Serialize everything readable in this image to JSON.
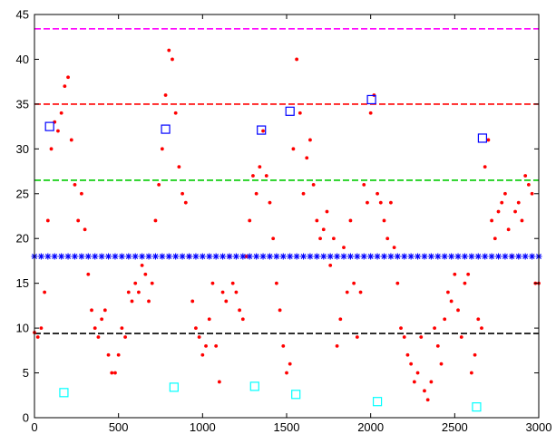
{
  "chart_data": {
    "type": "scatter",
    "title": "",
    "xlabel": "",
    "ylabel": "",
    "xlim": [
      0,
      3000
    ],
    "ylim": [
      0,
      45
    ],
    "grid": false,
    "x_ticks": [
      0,
      500,
      1000,
      1500,
      2000,
      2500,
      3000
    ],
    "y_ticks": [
      0,
      5,
      10,
      15,
      20,
      25,
      30,
      35,
      40,
      45
    ],
    "x_tick_labels": [
      "0",
      "500",
      "1000",
      "1500",
      "2000",
      "2500",
      "3000"
    ],
    "y_tick_labels": [
      "0",
      "5",
      "10",
      "15",
      "20",
      "25",
      "30",
      "35",
      "40",
      "45"
    ],
    "series": [
      {
        "color": "#ff0000",
        "marker": "dot",
        "x": [
          0,
          20,
          40,
          60,
          80,
          100,
          120,
          140,
          160,
          180,
          200,
          220,
          240,
          260,
          280,
          300,
          320,
          340,
          360,
          380,
          400,
          420,
          440,
          460,
          480,
          500,
          520,
          540,
          560,
          580,
          600,
          620,
          640,
          660,
          680,
          700,
          720,
          740,
          760,
          780,
          800,
          820,
          840,
          860,
          880,
          900,
          920,
          940,
          960,
          980,
          1000,
          1020,
          1040,
          1060,
          1080,
          1100,
          1120,
          1140,
          1160,
          1180,
          1200,
          1220,
          1240,
          1260,
          1280,
          1300,
          1320,
          1340,
          1360,
          1380,
          1400,
          1420,
          1440,
          1460,
          1480,
          1500,
          1520,
          1540,
          1560,
          1580,
          1600,
          1620,
          1640,
          1660,
          1680,
          1700,
          1720,
          1740,
          1760,
          1780,
          1800,
          1820,
          1840,
          1860,
          1880,
          1900,
          1920,
          1940,
          1960,
          1980,
          2000,
          2020,
          2040,
          2060,
          2080,
          2100,
          2120,
          2140,
          2160,
          2180,
          2200,
          2220,
          2240,
          2260,
          2280,
          2300,
          2320,
          2340,
          2360,
          2380,
          2400,
          2420,
          2440,
          2460,
          2480,
          2500,
          2520,
          2540,
          2560,
          2580,
          2600,
          2620,
          2640,
          2660,
          2680,
          2700,
          2720,
          2740,
          2760,
          2780,
          2800,
          2820,
          2840,
          2860,
          2880,
          2900,
          2920,
          2940,
          2960,
          2980,
          3000
        ],
        "y": [
          9.5,
          9,
          10,
          14,
          22,
          30,
          33,
          32,
          34,
          37,
          38,
          31,
          26,
          22,
          25,
          21,
          16,
          12,
          10,
          9,
          11,
          12,
          7,
          5,
          5,
          7,
          10,
          9,
          14,
          13,
          15,
          14,
          17,
          16,
          13,
          15,
          22,
          26,
          30,
          36,
          41,
          40,
          34,
          28,
          25,
          24,
          18,
          13,
          10,
          9,
          7,
          8,
          11,
          15,
          8,
          4,
          14,
          13,
          18,
          15,
          14,
          12,
          11,
          18,
          22,
          27,
          25,
          28,
          32,
          27,
          24,
          20,
          15,
          12,
          8,
          5,
          6,
          30,
          40,
          34,
          25,
          29,
          31,
          26,
          22,
          20,
          21,
          23,
          17,
          20,
          8,
          11,
          19,
          14,
          22,
          15,
          9,
          14,
          26,
          24,
          34,
          36,
          25,
          24,
          22,
          20,
          24,
          19,
          15,
          10,
          9,
          7,
          6,
          4,
          5,
          9,
          3,
          2,
          4,
          10,
          8,
          6,
          11,
          14,
          13,
          16,
          12,
          9,
          15,
          16,
          5,
          7,
          11,
          10,
          28,
          31,
          22,
          20,
          23,
          24,
          25,
          21,
          18,
          23,
          24,
          22,
          27,
          26,
          25,
          15,
          15
        ]
      },
      {
        "color": "#0000ff",
        "marker": "asterisk",
        "x": [
          0,
          40,
          80,
          120,
          160,
          200,
          240,
          280,
          320,
          360,
          400,
          440,
          480,
          520,
          560,
          600,
          640,
          680,
          720,
          760,
          800,
          840,
          880,
          920,
          960,
          1000,
          1040,
          1080,
          1120,
          1160,
          1200,
          1240,
          1280,
          1320,
          1360,
          1400,
          1440,
          1480,
          1520,
          1560,
          1600,
          1640,
          1680,
          1720,
          1760,
          1800,
          1840,
          1880,
          1920,
          1960,
          2000,
          2040,
          2080,
          2120,
          2160,
          2200,
          2240,
          2280,
          2320,
          2360,
          2400,
          2440,
          2480,
          2520,
          2560,
          2600,
          2640,
          2680,
          2720,
          2760,
          2800,
          2840,
          2880,
          2920,
          2960,
          3000
        ],
        "y": [
          18,
          18,
          18,
          18,
          18,
          18,
          18,
          18,
          18,
          18,
          18,
          18,
          18,
          18,
          18,
          18,
          18,
          18,
          18,
          18,
          18,
          18,
          18,
          18,
          18,
          18,
          18,
          18,
          18,
          18,
          18,
          18,
          18,
          18,
          18,
          18,
          18,
          18,
          18,
          18,
          18,
          18,
          18,
          18,
          18,
          18,
          18,
          18,
          18,
          18,
          18,
          18,
          18,
          18,
          18,
          18,
          18,
          18,
          18,
          18,
          18,
          18,
          18,
          18,
          18,
          18,
          18,
          18,
          18,
          18,
          18,
          18,
          18,
          18,
          18,
          18
        ]
      },
      {
        "color": "#0000ff",
        "marker": "square",
        "x": [
          90,
          780,
          1350,
          1520,
          2005,
          2665
        ],
        "y": [
          32.5,
          32.2,
          32.1,
          34.2,
          35.5,
          31.2
        ]
      },
      {
        "color": "#00ffff",
        "marker": "square",
        "x": [
          175,
          830,
          1310,
          1555,
          2040,
          2630
        ],
        "y": [
          2.8,
          3.4,
          3.5,
          2.6,
          1.8,
          1.2
        ]
      }
    ],
    "hlines": [
      {
        "y": 43.4,
        "color": "#ff00ff",
        "style": "dashed"
      },
      {
        "y": 35.0,
        "color": "#ff0000",
        "style": "dashed"
      },
      {
        "y": 26.5,
        "color": "#00cc00",
        "style": "dashed"
      },
      {
        "y": 9.4,
        "color": "#000000",
        "style": "dashed"
      }
    ]
  }
}
